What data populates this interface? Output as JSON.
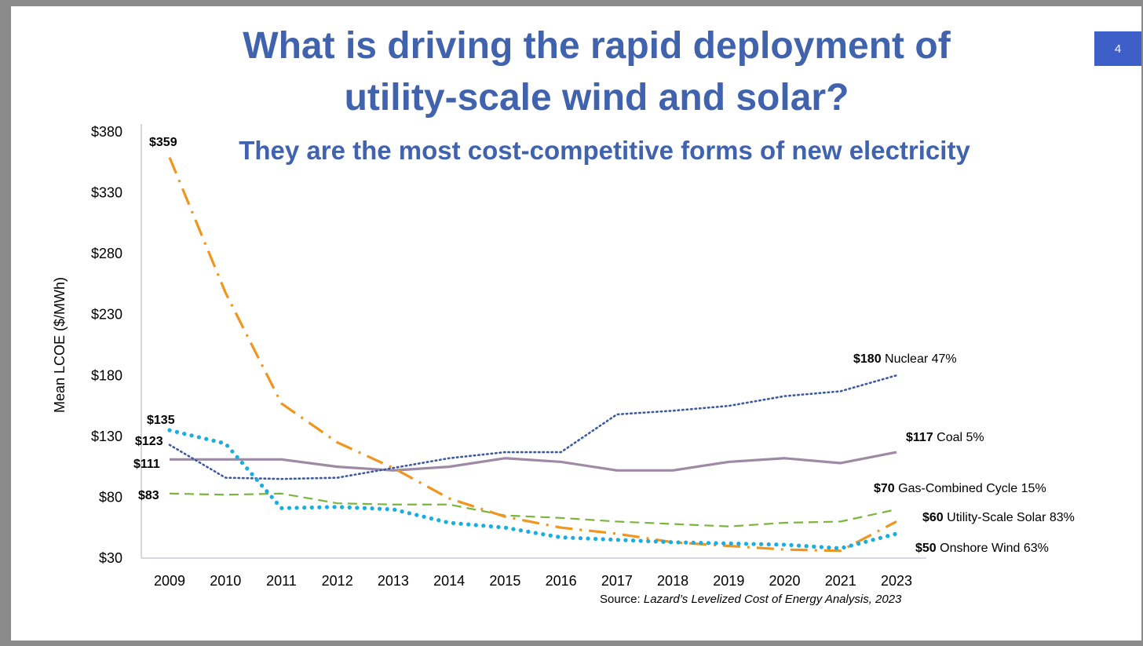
{
  "slide": {
    "number": "4",
    "title": "What is driving the rapid deployment of utility-scale wind and solar?",
    "subtitle": "They are the most cost-competitive forms of new electricity",
    "source_prefix": "Source:",
    "source_text": "Lazard’s Levelized Cost of Energy Analysis, 2023"
  },
  "chart_data": {
    "type": "line",
    "ylabel": "Mean LCOE ($/MWh)",
    "ylim": [
      30,
      380
    ],
    "yticks": [
      30,
      80,
      130,
      180,
      230,
      280,
      330,
      380
    ],
    "ytick_labels": [
      "$30",
      "$80",
      "$130",
      "$180",
      "$230",
      "$280",
      "$330",
      "$380"
    ],
    "categories": [
      "2009",
      "2010",
      "2011",
      "2012",
      "2013",
      "2014",
      "2015",
      "2016",
      "2017",
      "2018",
      "2019",
      "2020",
      "2021",
      "2023"
    ],
    "grid": false,
    "legend": "none",
    "series": [
      {
        "key": "nuclear",
        "color": "#3d5a9e",
        "style": "dotted",
        "values": [
          123,
          96,
          95,
          96,
          104,
          112,
          117,
          117,
          148,
          151,
          155,
          163,
          167,
          180
        ],
        "end_value_label": "$180",
        "end_label": "Nuclear 47%",
        "start_value_label": "$123"
      },
      {
        "key": "coal",
        "color": "#9e8aa5",
        "style": "solid",
        "values": [
          111,
          111,
          111,
          105,
          102,
          105,
          112,
          109,
          102,
          102,
          109,
          112,
          108,
          117
        ],
        "end_value_label": "$117",
        "end_label": "Coal 5%",
        "start_value_label": "$111"
      },
      {
        "key": "gas",
        "color": "#7ab53c",
        "style": "dashed",
        "values": [
          83,
          82,
          83,
          75,
          74,
          74,
          65,
          63,
          60,
          58,
          56,
          59,
          60,
          70
        ],
        "end_value_label": "$70",
        "end_label": "Gas-Combined Cycle 15%",
        "start_value_label": "$83"
      },
      {
        "key": "solar",
        "color": "#f0951e",
        "style": "dashdot",
        "values": [
          359,
          248,
          157,
          125,
          104,
          79,
          64,
          55,
          50,
          43,
          40,
          37,
          36,
          60
        ],
        "end_value_label": "$60",
        "end_label": "Utility-Scale Solar 83%",
        "start_value_label": "$359"
      },
      {
        "key": "wind",
        "color": "#1aaee0",
        "style": "bigdots",
        "values": [
          135,
          124,
          71,
          72,
          70,
          59,
          55,
          47,
          45,
          43,
          42,
          41,
          38,
          50
        ],
        "end_value_label": "$50",
        "end_label": "Onshore Wind 63%",
        "start_value_label": "$135"
      }
    ]
  }
}
